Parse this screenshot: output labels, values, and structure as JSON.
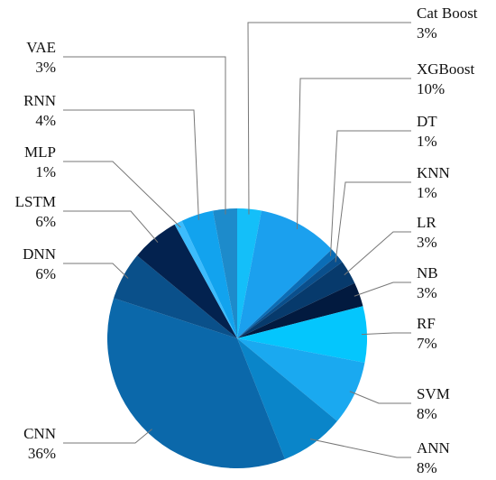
{
  "chart_data": {
    "type": "pie",
    "categories": [
      "Cat Boost",
      "XGBoost",
      "DT",
      "KNN",
      "LR",
      "NB",
      "RF",
      "SVM",
      "ANN",
      "CNN",
      "DNN",
      "LSTM",
      "MLP",
      "RNN",
      "VAE"
    ],
    "values": [
      3,
      10,
      1,
      1,
      3,
      3,
      7,
      8,
      8,
      36,
      6,
      6,
      1,
      4,
      3
    ],
    "value_labels": [
      "3%",
      "10%",
      "1%",
      "1%",
      "3%",
      "3%",
      "7%",
      "8%",
      "8%",
      "36%",
      "6%",
      "6%",
      "1%",
      "4%",
      "3%"
    ],
    "colors": [
      "#14bff9",
      "#1ba0ee",
      "#0b6db6",
      "#0a4f8c",
      "#073a6c",
      "#021a3f",
      "#04c6fd",
      "#1aa9f0",
      "#0a85c9",
      "#0b68aa",
      "#0a508a",
      "#03224f",
      "#3cbcfd",
      "#12a3ee",
      "#1d8bcb"
    ]
  }
}
